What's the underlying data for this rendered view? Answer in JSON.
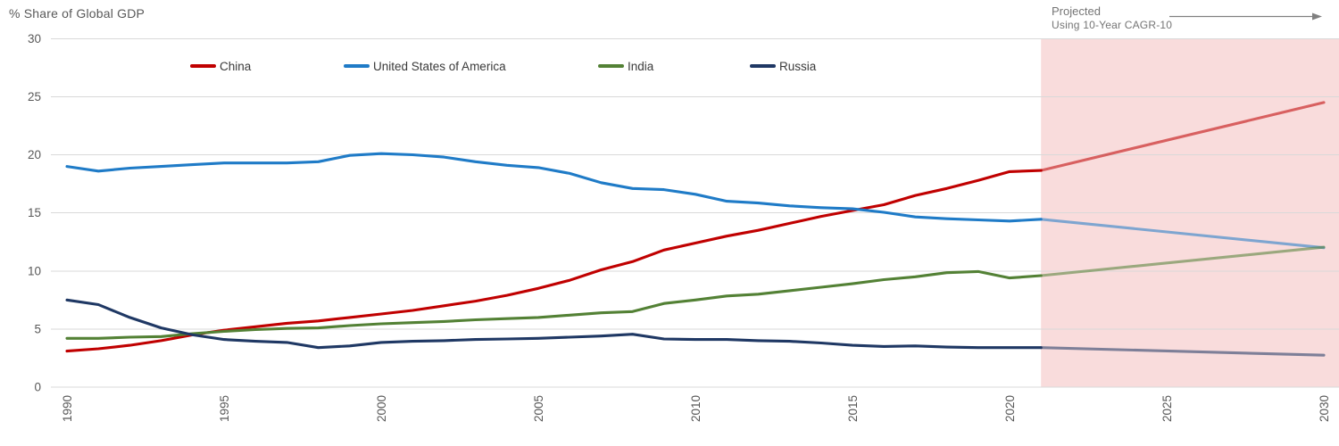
{
  "title": "% Share of Global GDP",
  "projection_note": {
    "line1": "Projected",
    "line2": "Using 10-Year CAGR-10"
  },
  "chart_data": {
    "type": "line",
    "title": "% Share of Global GDP",
    "ylabel": "% Share of Global GDP",
    "xlabel": "",
    "grid": "horizontal",
    "legend_position": "top",
    "xlim": [
      1990,
      2030
    ],
    "ylim": [
      0,
      30
    ],
    "x_ticks": [
      1990,
      1995,
      2000,
      2005,
      2010,
      2015,
      2020,
      2025,
      2030
    ],
    "y_ticks": [
      0,
      5,
      10,
      15,
      20,
      25,
      30
    ],
    "x": [
      1990,
      1991,
      1992,
      1993,
      1994,
      1995,
      1996,
      1997,
      1998,
      1999,
      2000,
      2001,
      2002,
      2003,
      2004,
      2005,
      2006,
      2007,
      2008,
      2009,
      2010,
      2011,
      2012,
      2013,
      2014,
      2015,
      2016,
      2017,
      2018,
      2019,
      2020,
      2021
    ],
    "series": [
      {
        "name": "China",
        "color": "#C00000",
        "values": [
          3.1,
          3.3,
          3.6,
          4.0,
          4.5,
          4.9,
          5.2,
          5.5,
          5.7,
          6.0,
          6.3,
          6.6,
          7.0,
          7.4,
          7.9,
          8.5,
          9.2,
          10.1,
          10.8,
          11.8,
          12.4,
          13.0,
          13.5,
          14.1,
          14.7,
          15.2,
          15.7,
          16.5,
          17.1,
          17.8,
          18.55,
          18.65
        ],
        "projection": {
          "x": [
            2021,
            2030
          ],
          "values": [
            18.65,
            24.5
          ]
        }
      },
      {
        "name": "United States of America",
        "color": "#1F7BC7",
        "values": [
          19.0,
          18.6,
          18.85,
          19.0,
          19.15,
          19.3,
          19.3,
          19.3,
          19.4,
          19.95,
          20.1,
          20.0,
          19.8,
          19.4,
          19.1,
          18.9,
          18.4,
          17.6,
          17.1,
          17.0,
          16.6,
          16.0,
          15.85,
          15.6,
          15.45,
          15.35,
          15.05,
          14.65,
          14.5,
          14.4,
          14.3,
          14.45
        ],
        "projection": {
          "x": [
            2021,
            2030
          ],
          "values": [
            14.45,
            12.0
          ]
        }
      },
      {
        "name": "India",
        "color": "#538135",
        "values": [
          4.2,
          4.2,
          4.3,
          4.35,
          4.6,
          4.8,
          4.95,
          5.05,
          5.1,
          5.3,
          5.45,
          5.55,
          5.65,
          5.8,
          5.9,
          6.0,
          6.2,
          6.4,
          6.5,
          7.2,
          7.5,
          7.85,
          8.0,
          8.3,
          8.6,
          8.9,
          9.25,
          9.5,
          9.85,
          9.95,
          9.4,
          9.6
        ],
        "projection": {
          "x": [
            2021,
            2030
          ],
          "values": [
            9.6,
            12.05
          ]
        }
      },
      {
        "name": "Russia",
        "color": "#1F3864",
        "values": [
          7.5,
          7.1,
          6.0,
          5.1,
          4.5,
          4.1,
          3.95,
          3.85,
          3.4,
          3.55,
          3.85,
          3.95,
          4.0,
          4.1,
          4.15,
          4.2,
          4.3,
          4.4,
          4.55,
          4.15,
          4.1,
          4.1,
          4.0,
          3.95,
          3.8,
          3.6,
          3.5,
          3.55,
          3.45,
          3.4,
          3.4,
          3.4
        ],
        "projection": {
          "x": [
            2021,
            2030
          ],
          "values": [
            3.4,
            2.75
          ]
        }
      }
    ],
    "projection_region": {
      "start_x": 2021,
      "fill": "#F9DCDC"
    },
    "colors": {
      "gridline": "#D9D9D9",
      "axis_text": "#595959",
      "legend_text": "#3A3A3A",
      "note_text": "#757575",
      "arrow": "#808080",
      "projected_line_opacity": 0.56
    }
  }
}
